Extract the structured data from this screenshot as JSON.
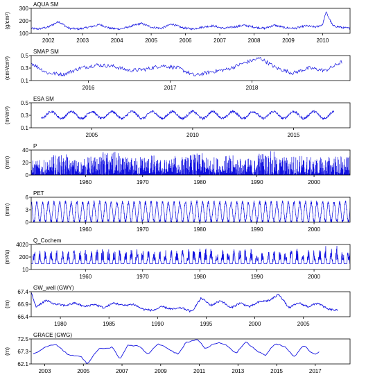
{
  "figure": {
    "line_color": "#1010e0",
    "axis_color": "#000000",
    "background": "#ffffff"
  },
  "chart_data": [
    {
      "type": "line",
      "title": "AQUA SM",
      "ylabel": "(g/cm³)",
      "ylim": [
        100,
        300
      ],
      "xlim": [
        2001.5,
        2010.8
      ],
      "yticks": [
        100,
        200,
        300
      ],
      "xticks": [
        2002,
        2003,
        2004,
        2005,
        2006,
        2007,
        2008,
        2009,
        2010
      ],
      "series": [
        {
          "x": [
            2001.5,
            2001.7,
            2002.0,
            2002.3,
            2002.6,
            2002.9,
            2003.2,
            2003.5,
            2003.8,
            2004.1,
            2004.4,
            2004.7,
            2005.0,
            2005.3,
            2005.6,
            2005.9,
            2006.2,
            2006.5,
            2006.8,
            2007.1,
            2007.4,
            2007.7,
            2008.0,
            2008.3,
            2008.6,
            2008.9,
            2009.2,
            2009.5,
            2009.8,
            2010.0,
            2010.1,
            2010.3,
            2010.6,
            2010.8
          ],
          "values": [
            140,
            135,
            150,
            195,
            140,
            135,
            150,
            170,
            140,
            135,
            155,
            180,
            150,
            140,
            175,
            145,
            135,
            150,
            160,
            140,
            150,
            165,
            150,
            140,
            165,
            145,
            140,
            160,
            150,
            170,
            270,
            160,
            145,
            140
          ]
        }
      ]
    },
    {
      "type": "line",
      "title": "SMAP SM",
      "ylabel": "(cm³/cm³)",
      "ylim": [
        0.1,
        0.5
      ],
      "xlim": [
        2015.3,
        2019.2
      ],
      "yticks": [
        0.1,
        0.3,
        0.5
      ],
      "xticks": [
        2016,
        2017,
        2018
      ],
      "series": [
        {
          "x": [
            2015.3,
            2015.5,
            2015.7,
            2015.9,
            2016.1,
            2016.3,
            2016.5,
            2016.7,
            2016.9,
            2017.1,
            2017.3,
            2017.5,
            2017.7,
            2017.9,
            2018.1,
            2018.3,
            2018.5,
            2018.7,
            2018.9,
            2019.1
          ],
          "values": [
            0.38,
            0.22,
            0.2,
            0.3,
            0.35,
            0.33,
            0.26,
            0.28,
            0.34,
            0.3,
            0.18,
            0.24,
            0.28,
            0.38,
            0.46,
            0.3,
            0.22,
            0.3,
            0.26,
            0.4
          ]
        }
      ]
    },
    {
      "type": "line",
      "title": "ESA SM",
      "ylabel": "(m³/m³)",
      "ylim": [
        0.1,
        0.5
      ],
      "xlim": [
        2002.0,
        2017.8
      ],
      "yticks": [
        0.1,
        0.3,
        0.5
      ],
      "xticks": [
        2005,
        2010,
        2015
      ],
      "series": [
        {
          "x": [
            2002.5,
            2003.0,
            2003.5,
            2004.0,
            2004.5,
            2005.0,
            2005.5,
            2006.0,
            2006.5,
            2007.0,
            2007.5,
            2008.0,
            2008.5,
            2009.0,
            2009.5,
            2010.0,
            2010.5,
            2011.0,
            2011.5,
            2012.0,
            2012.5,
            2013.0,
            2013.5,
            2014.0,
            2014.5,
            2015.0,
            2015.5,
            2016.0,
            2016.5,
            2017.0
          ],
          "values": [
            0.36,
            0.24,
            0.36,
            0.25,
            0.35,
            0.26,
            0.36,
            0.25,
            0.35,
            0.27,
            0.36,
            0.26,
            0.35,
            0.25,
            0.35,
            0.25,
            0.36,
            0.26,
            0.35,
            0.25,
            0.36,
            0.27,
            0.35,
            0.26,
            0.36,
            0.25,
            0.35,
            0.26,
            0.36,
            0.27
          ]
        }
      ]
    },
    {
      "type": "line",
      "title": "P",
      "ylabel": "(mm)",
      "ylim": [
        0,
        40
      ],
      "xlim": [
        1950.5,
        2006.3
      ],
      "yticks": [
        0,
        20,
        40
      ],
      "xticks": [
        1960,
        1970,
        1980,
        1990,
        2000
      ],
      "series": [
        {
          "x": [
            1951,
            1954,
            1957,
            1960,
            1963,
            1966,
            1969,
            1972,
            1975,
            1978,
            1981,
            1984,
            1987,
            1990,
            1993,
            1996,
            1999,
            2002,
            2005
          ],
          "values": [
            22,
            30,
            24,
            28,
            34,
            26,
            30,
            24,
            28,
            32,
            27,
            29,
            25,
            35,
            28,
            30,
            26,
            29,
            27
          ]
        }
      ]
    },
    {
      "type": "line",
      "title": "PET",
      "ylabel": "(mm)",
      "ylim": [
        0,
        6
      ],
      "xlim": [
        1950.5,
        2006.3
      ],
      "yticks": [
        0,
        3,
        6
      ],
      "xticks": [
        1960,
        1970,
        1980,
        1990,
        2000
      ],
      "series": [
        {
          "x": [
            1951.0,
            1951.5,
            1952.0,
            1952.5,
            1953.0,
            1953.5,
            1954.0
          ],
          "values": [
            0.3,
            4.8,
            0.3,
            4.8,
            0.3,
            4.8,
            0.3
          ]
        }
      ]
    },
    {
      "type": "line",
      "title": "Q_Cochem",
      "ylabel": "(m³/s)",
      "ylim": [
        10,
        4020
      ],
      "ylog": true,
      "xlim": [
        1950.5,
        2006.3
      ],
      "yticks": [
        10,
        200,
        4020
      ],
      "xticks": [
        1960,
        1970,
        1980,
        1990,
        2000
      ],
      "series": [
        {
          "x": [
            1951,
            1953,
            1955,
            1958,
            1962,
            1966,
            1970,
            1974,
            1978,
            1982,
            1986,
            1990,
            1994,
            1998,
            2002,
            2004
          ],
          "values": [
            1200,
            900,
            800,
            1000,
            1500,
            1200,
            900,
            1100,
            1800,
            1300,
            1400,
            1000,
            1600,
            1200,
            3000,
            900
          ]
        }
      ]
    },
    {
      "type": "line",
      "title": "GW_well (GWY)",
      "ylabel": "(m)",
      "ylim": [
        66.4,
        67.4
      ],
      "xlim": [
        1977.0,
        2009.8
      ],
      "yticks": [
        66.4,
        66.9,
        67.4
      ],
      "xticks": [
        1980,
        1985,
        1990,
        1995,
        2000,
        2005
      ],
      "series": [
        {
          "x": [
            1977.0,
            1977.5,
            1978.5,
            1979.5,
            1980.5,
            1981.5,
            1982.5,
            1983.5,
            1984.5,
            1985.5,
            1986.5,
            1987.5,
            1988.5,
            1989.5,
            1990.5,
            1991.5,
            1992.5,
            1993.5,
            1994.5,
            1995.5,
            1996.5,
            1997.5,
            1998.5,
            1999.5,
            2000.5,
            2001.5,
            2002.5,
            2003.5,
            2004.5,
            2005.5,
            2006.5,
            2007.5,
            2008.5
          ],
          "values": [
            67.35,
            66.8,
            67.05,
            66.9,
            66.85,
            66.95,
            66.8,
            66.9,
            66.75,
            66.95,
            66.85,
            66.9,
            66.7,
            66.65,
            66.8,
            66.7,
            66.75,
            66.6,
            67.15,
            66.85,
            67.05,
            66.75,
            66.95,
            66.8,
            67.0,
            67.05,
            67.3,
            66.75,
            66.95,
            66.8,
            66.95,
            66.7,
            66.65
          ]
        }
      ]
    },
    {
      "type": "line",
      "title": "GRACE (GWG)",
      "ylabel": "(m)",
      "ylim": [
        62.1,
        72.5
      ],
      "xlim": [
        2002.3,
        2018.8
      ],
      "yticks": [
        62.1,
        67.3,
        72.5
      ],
      "xticks": [
        2003,
        2005,
        2007,
        2009,
        2011,
        2013,
        2015,
        2017
      ],
      "series": [
        {
          "x": [
            2002.4,
            2003.1,
            2003.6,
            2004.2,
            2004.9,
            2005.2,
            2005.8,
            2006.5,
            2006.9,
            2007.3,
            2007.9,
            2008.3,
            2008.9,
            2009.3,
            2009.9,
            2010.3,
            2010.9,
            2011.3,
            2011.9,
            2012.4,
            2012.9,
            2013.4,
            2013.9,
            2014.4,
            2014.9,
            2015.4,
            2015.9,
            2016.4,
            2016.9,
            2017.2
          ],
          "values": [
            66.0,
            69.5,
            70.0,
            66.0,
            65.0,
            62.1,
            68.5,
            69.0,
            64.0,
            70.0,
            69.5,
            66.0,
            70.5,
            69.0,
            66.0,
            71.0,
            72.4,
            68.5,
            71.0,
            70.0,
            66.5,
            71.5,
            68.0,
            65.5,
            70.5,
            69.5,
            65.0,
            70.0,
            66.0,
            67.0
          ]
        }
      ]
    }
  ]
}
